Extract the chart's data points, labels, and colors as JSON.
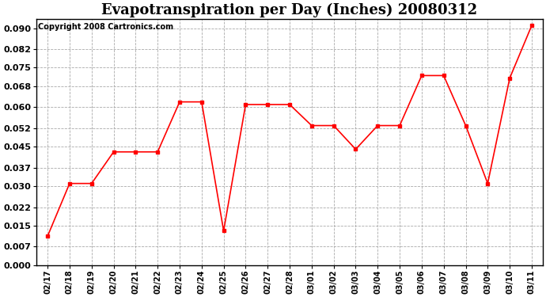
{
  "title": "Evapotranspiration per Day (Inches) 20080312",
  "copyright_text": "Copyright 2008 Cartronics.com",
  "labels": [
    "02/17",
    "02/18",
    "02/19",
    "02/20",
    "02/21",
    "02/22",
    "02/23",
    "02/24",
    "02/25",
    "02/26",
    "02/27",
    "02/28",
    "03/01",
    "03/02",
    "03/03",
    "03/04",
    "03/05",
    "03/06",
    "03/07",
    "03/08",
    "03/09",
    "03/10",
    "03/11"
  ],
  "values": [
    0.011,
    0.031,
    0.031,
    0.043,
    0.043,
    0.043,
    0.062,
    0.062,
    0.013,
    0.061,
    0.061,
    0.061,
    0.053,
    0.053,
    0.044,
    0.053,
    0.053,
    0.072,
    0.072,
    0.053,
    0.031,
    0.071,
    0.091
  ],
  "line_color": "#ff0000",
  "marker": "s",
  "marker_size": 2.5,
  "ylim": [
    0.0,
    0.0935
  ],
  "yticks": [
    0.0,
    0.007,
    0.015,
    0.022,
    0.03,
    0.037,
    0.045,
    0.052,
    0.06,
    0.068,
    0.075,
    0.082,
    0.09
  ],
  "background_color": "#ffffff",
  "grid_color": "#aaaaaa",
  "title_fontsize": 13,
  "copyright_fontsize": 7,
  "xtick_fontsize": 7,
  "ytick_fontsize": 8
}
